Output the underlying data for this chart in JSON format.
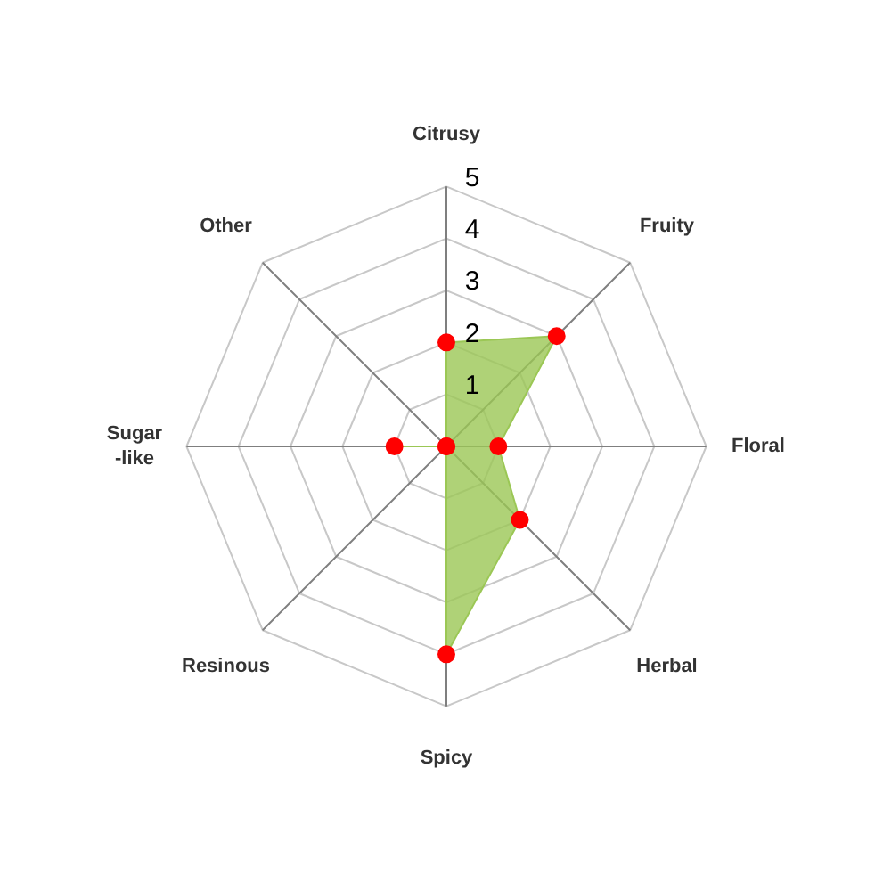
{
  "chart_data": {
    "type": "radar",
    "categories": [
      "Citrusy",
      "Fruity",
      "Floral",
      "Herbal",
      "Spicy",
      "Resinous",
      "Sugar\n-like",
      "Other"
    ],
    "series": [
      {
        "color": "#9bc755",
        "values": [
          2,
          3,
          1,
          2,
          4,
          0,
          1,
          0
        ]
      }
    ],
    "ylim": [
      0,
      5
    ],
    "yticks": [
      1,
      2,
      3,
      4,
      5
    ],
    "marker": "circle",
    "grid": true
  }
}
